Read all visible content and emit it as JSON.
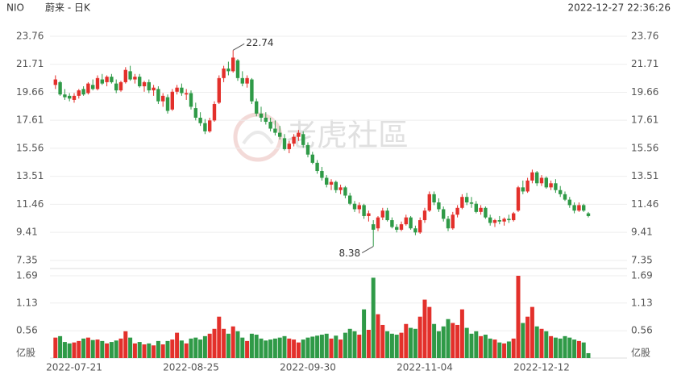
{
  "chart_data": {
    "type": "candlestick",
    "symbol": "NIO",
    "title": "蔚来 - 日K",
    "timestamp": "2022-12-27 22:36:26",
    "watermark": "老虎社區",
    "up_color": "#e3302b",
    "down_color": "#2f9a47",
    "categories": [
      null,
      null,
      null,
      null,
      "2022-07-21",
      null,
      null,
      null,
      null,
      null,
      null,
      null,
      null,
      null,
      null,
      null,
      null,
      null,
      null,
      null,
      null,
      null,
      null,
      null,
      null,
      null,
      null,
      null,
      null,
      "2022-08-25",
      null,
      null,
      null,
      null,
      null,
      null,
      null,
      null,
      null,
      null,
      null,
      null,
      null,
      null,
      null,
      null,
      null,
      null,
      null,
      null,
      null,
      null,
      null,
      null,
      "2022-09-30",
      null,
      null,
      null,
      null,
      null,
      null,
      null,
      null,
      null,
      null,
      null,
      null,
      null,
      null,
      null,
      null,
      null,
      null,
      null,
      null,
      null,
      null,
      null,
      null,
      "2022-11-04",
      null,
      null,
      null,
      null,
      null,
      null,
      null,
      null,
      null,
      null,
      null,
      null,
      null,
      null,
      null,
      null,
      null,
      null,
      null,
      null,
      null,
      null,
      null,
      null,
      "2022-12-12",
      null,
      null,
      null,
      null,
      null,
      null,
      null,
      null,
      null,
      null
    ],
    "open": [
      20.2,
      20.4,
      19.5,
      19.4,
      19.1,
      19.4,
      19.9,
      19.6,
      20.2,
      19.9,
      20.6,
      20.4,
      20.8,
      20.3,
      19.8,
      20.4,
      21.2,
      20.6,
      20.8,
      20.1,
      20.4,
      19.8,
      19.9,
      19.0,
      19.3,
      18.4,
      19.7,
      20.0,
      19.5,
      19.6,
      18.5,
      17.8,
      17.4,
      16.8,
      17.6,
      18.9,
      20.7,
      21.4,
      21.2,
      22.0,
      20.7,
      20.3,
      20.6,
      19.0,
      18.1,
      17.8,
      17.5,
      17.0,
      16.7,
      16.3,
      15.5,
      15.9,
      16.4,
      16.6,
      15.8,
      15.1,
      14.5,
      13.9,
      13.4,
      12.9,
      13.1,
      12.5,
      12.7,
      12.1,
      11.5,
      11.1,
      11.4,
      10.6,
      10.0,
      9.7,
      10.5,
      11.0,
      10.3,
      9.8,
      9.6,
      10.0,
      10.5,
      9.7,
      9.4,
      10.3,
      11.0,
      12.2,
      11.6,
      11.1,
      10.4,
      9.7,
      10.7,
      11.2,
      12.0,
      11.6,
      11.5,
      10.9,
      11.2,
      10.5,
      10.1,
      10.3,
      10.2,
      10.4,
      10.3,
      11.0,
      12.7,
      12.4,
      13.2,
      13.8,
      13.0,
      13.4,
      12.7,
      13.0,
      12.5,
      12.2,
      11.8,
      11.4,
      11.0,
      11.4,
      10.8
    ],
    "high": [
      20.9,
      20.5,
      19.9,
      19.6,
      19.6,
      19.9,
      20.1,
      20.4,
      20.6,
      20.9,
      21.0,
      20.9,
      21.0,
      20.6,
      20.5,
      21.5,
      21.6,
      21.0,
      21.0,
      20.5,
      20.6,
      20.2,
      20.1,
      19.6,
      19.5,
      19.9,
      20.2,
      20.3,
      19.9,
      19.8,
      18.9,
      18.2,
      17.7,
      17.8,
      19.0,
      20.9,
      21.6,
      21.9,
      22.74,
      22.1,
      21.2,
      20.9,
      20.7,
      19.2,
      18.6,
      18.2,
      17.8,
      17.6,
      17.2,
      16.6,
      16.1,
      16.6,
      16.9,
      16.8,
      16.0,
      15.3,
      14.7,
      14.2,
      13.6,
      13.3,
      13.2,
      12.9,
      12.8,
      12.3,
      11.7,
      11.6,
      11.5,
      11.0,
      10.3,
      10.6,
      11.2,
      11.2,
      10.5,
      10.0,
      10.2,
      10.7,
      10.6,
      9.9,
      10.5,
      11.2,
      12.4,
      12.4,
      11.9,
      11.3,
      10.6,
      10.9,
      11.4,
      12.2,
      12.3,
      12.0,
      11.7,
      11.4,
      11.3,
      10.7,
      10.4,
      10.6,
      10.5,
      10.7,
      10.9,
      12.8,
      13.2,
      13.4,
      14.0,
      13.9,
      13.6,
      13.5,
      13.2,
      13.3,
      12.8,
      12.4,
      12.0,
      11.6,
      11.6,
      11.5,
      10.9
    ],
    "low": [
      19.9,
      19.4,
      19.1,
      19.0,
      18.9,
      19.2,
      19.4,
      19.5,
      19.8,
      19.8,
      20.2,
      20.1,
      20.3,
      19.6,
      19.7,
      20.3,
      20.5,
      20.3,
      20.0,
      19.7,
      19.6,
      19.4,
      18.8,
      18.6,
      18.1,
      18.3,
      19.5,
      19.4,
      19.1,
      18.4,
      17.6,
      17.2,
      16.6,
      16.7,
      17.5,
      18.8,
      20.4,
      20.9,
      21.1,
      20.5,
      20.1,
      20.0,
      18.8,
      17.9,
      17.5,
      17.3,
      16.8,
      16.5,
      16.2,
      15.4,
      15.2,
      15.7,
      16.1,
      15.6,
      14.9,
      14.4,
      13.7,
      13.2,
      12.7,
      12.5,
      12.3,
      12.2,
      11.9,
      11.4,
      10.9,
      10.8,
      10.4,
      10.2,
      8.38,
      9.5,
      10.3,
      10.2,
      9.7,
      9.4,
      9.5,
      9.9,
      9.6,
      9.2,
      9.3,
      10.1,
      10.9,
      11.4,
      10.9,
      10.2,
      9.5,
      9.6,
      10.5,
      11.1,
      11.4,
      11.2,
      10.8,
      10.7,
      10.4,
      9.9,
      9.8,
      10.0,
      9.9,
      10.1,
      10.2,
      10.9,
      12.2,
      12.3,
      13.0,
      12.8,
      12.8,
      12.6,
      12.5,
      12.3,
      12.0,
      11.7,
      11.2,
      10.8,
      10.9,
      10.9,
      10.5
    ],
    "close": [
      20.6,
      19.5,
      19.3,
      19.2,
      19.4,
      19.8,
      19.5,
      20.3,
      19.9,
      20.7,
      20.3,
      20.8,
      20.4,
      19.8,
      20.4,
      21.3,
      20.6,
      20.8,
      20.1,
      20.4,
      19.8,
      20.0,
      19.0,
      19.4,
      18.3,
      19.7,
      20.0,
      19.6,
      19.6,
      18.6,
      17.8,
      17.4,
      16.8,
      17.6,
      18.8,
      20.7,
      21.4,
      21.2,
      22.2,
      20.7,
      20.3,
      20.7,
      19.0,
      18.1,
      17.8,
      17.5,
      17.0,
      16.7,
      16.4,
      15.5,
      15.9,
      16.4,
      16.7,
      15.8,
      15.1,
      14.5,
      13.9,
      13.4,
      12.9,
      13.1,
      12.5,
      12.7,
      12.1,
      11.5,
      11.1,
      11.4,
      10.6,
      10.8,
      9.6,
      10.5,
      11.0,
      10.3,
      9.8,
      9.6,
      10.0,
      10.5,
      9.7,
      9.4,
      10.3,
      11.0,
      12.2,
      11.6,
      11.1,
      10.4,
      9.7,
      10.7,
      11.2,
      12.0,
      11.6,
      11.5,
      10.9,
      11.2,
      10.5,
      10.1,
      10.3,
      10.2,
      10.4,
      10.3,
      10.8,
      12.7,
      12.4,
      13.2,
      13.8,
      13.0,
      13.4,
      12.7,
      13.0,
      12.5,
      12.2,
      11.8,
      11.4,
      11.0,
      11.4,
      11.0,
      10.6
    ],
    "volume": [
      0.42,
      0.45,
      0.33,
      0.3,
      0.32,
      0.35,
      0.4,
      0.42,
      0.37,
      0.38,
      0.35,
      0.3,
      0.33,
      0.36,
      0.4,
      0.55,
      0.42,
      0.3,
      0.33,
      0.28,
      0.3,
      0.26,
      0.35,
      0.28,
      0.35,
      0.38,
      0.52,
      0.36,
      0.3,
      0.4,
      0.42,
      0.38,
      0.45,
      0.5,
      0.6,
      0.85,
      0.6,
      0.5,
      0.65,
      0.55,
      0.42,
      0.35,
      0.5,
      0.48,
      0.4,
      0.36,
      0.38,
      0.4,
      0.42,
      0.45,
      0.4,
      0.38,
      0.32,
      0.38,
      0.42,
      0.44,
      0.46,
      0.48,
      0.5,
      0.4,
      0.46,
      0.38,
      0.52,
      0.6,
      0.55,
      0.48,
      1.0,
      0.58,
      1.65,
      0.9,
      0.68,
      0.55,
      0.5,
      0.48,
      0.52,
      0.7,
      0.62,
      0.6,
      0.85,
      1.2,
      1.05,
      0.7,
      0.55,
      0.65,
      0.8,
      0.72,
      0.68,
      1.0,
      0.62,
      0.5,
      0.55,
      0.45,
      0.48,
      0.4,
      0.38,
      0.32,
      0.3,
      0.34,
      0.4,
      1.69,
      0.72,
      0.85,
      1.05,
      0.65,
      0.6,
      0.55,
      0.45,
      0.42,
      0.4,
      0.45,
      0.42,
      0.38,
      0.35,
      0.32,
      0.1
    ],
    "ylim": [
      7.35,
      23.76
    ],
    "yticks": [
      23.76,
      21.71,
      19.66,
      17.61,
      15.56,
      13.51,
      11.46,
      9.41,
      7.35
    ],
    "vlim": [
      0,
      1.69
    ],
    "vticks": [
      1.69,
      1.13,
      0.56
    ],
    "volume_unit": "亿股",
    "grid": true
  }
}
